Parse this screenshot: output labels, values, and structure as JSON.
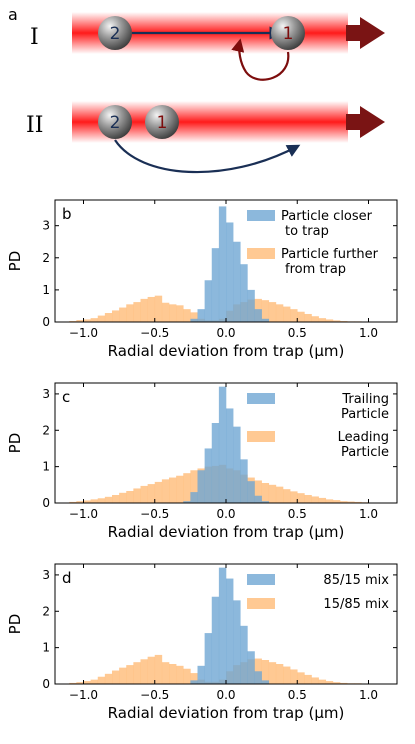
{
  "panel_a": {
    "label": "a",
    "rows": [
      {
        "roman": "I",
        "back_particle": "2",
        "front_particle": "1"
      },
      {
        "roman": "II",
        "back_particle": "2",
        "front_particle": "1"
      }
    ]
  },
  "chart_data": [
    {
      "type": "bar",
      "panel": "b",
      "xlabel": "Radial deviation from trap (μm)",
      "ylabel": "PD",
      "xlim": [
        -1.2,
        1.2
      ],
      "ylim": [
        0,
        3.8
      ],
      "xticks": [
        -1.0,
        -0.5,
        0.0,
        0.5,
        1.0
      ],
      "xtick_labels": [
        "−1.0",
        "−0.5",
        "0.0",
        "0.5",
        "1.0"
      ],
      "yticks": [
        0,
        1,
        2,
        3
      ],
      "legend_position": "top-right",
      "bin_width": 0.05,
      "bin_start": -1.1,
      "grid": false,
      "series": [
        {
          "name": "Particle further from trap",
          "legend": [
            "Particle further",
            "from trap"
          ],
          "color": "#ffbb78",
          "values": [
            0.03,
            0.06,
            0.08,
            0.12,
            0.2,
            0.28,
            0.36,
            0.45,
            0.55,
            0.62,
            0.72,
            0.78,
            0.82,
            0.6,
            0.55,
            0.52,
            0.4,
            0.3,
            0.1,
            0.05,
            0.05,
            0.1,
            0.35,
            0.55,
            0.62,
            0.7,
            0.72,
            0.68,
            0.62,
            0.55,
            0.48,
            0.4,
            0.32,
            0.25,
            0.18,
            0.12,
            0.08,
            0.05,
            0.03,
            0.02,
            0.02,
            0.01
          ]
        },
        {
          "name": "Particle closer to trap",
          "legend": [
            "Particle closer",
            "to trap"
          ],
          "color": "#6fa6d3",
          "values": [
            0,
            0,
            0,
            0,
            0,
            0,
            0,
            0,
            0,
            0,
            0,
            0,
            0,
            0,
            0,
            0,
            0,
            0.1,
            0.4,
            1.3,
            2.3,
            3.6,
            3.1,
            2.5,
            1.8,
            1.0,
            0.4,
            0.1,
            0,
            0,
            0,
            0,
            0,
            0,
            0,
            0,
            0,
            0,
            0,
            0,
            0,
            0
          ]
        }
      ]
    },
    {
      "type": "bar",
      "panel": "c",
      "xlabel": "Radial deviation from trap (μm)",
      "ylabel": "PD",
      "xlim": [
        -1.2,
        1.2
      ],
      "ylim": [
        0,
        3.3
      ],
      "xticks": [
        -1.0,
        -0.5,
        0.0,
        0.5,
        1.0
      ],
      "xtick_labels": [
        "−1.0",
        "−0.5",
        "0.0",
        "0.5",
        "1.0"
      ],
      "yticks": [
        0,
        1,
        2,
        3
      ],
      "legend_position": "top-right",
      "bin_width": 0.05,
      "bin_start": -1.1,
      "grid": false,
      "series": [
        {
          "name": "Leading Particle",
          "legend": [
            "Leading",
            "Particle"
          ],
          "color": "#ffbb78",
          "values": [
            0.03,
            0.05,
            0.07,
            0.1,
            0.13,
            0.17,
            0.22,
            0.28,
            0.33,
            0.4,
            0.47,
            0.52,
            0.58,
            0.65,
            0.7,
            0.75,
            0.82,
            0.9,
            0.95,
            1.0,
            1.02,
            1.05,
            0.95,
            0.9,
            0.78,
            0.7,
            0.62,
            0.55,
            0.5,
            0.45,
            0.38,
            0.32,
            0.27,
            0.22,
            0.18,
            0.14,
            0.1,
            0.08,
            0.05,
            0.04,
            0.03,
            0.02
          ]
        },
        {
          "name": "Trailing Particle",
          "legend": [
            "Trailing",
            "Particle"
          ],
          "color": "#6fa6d3",
          "values": [
            0,
            0,
            0,
            0,
            0,
            0,
            0,
            0,
            0,
            0,
            0,
            0,
            0,
            0,
            0,
            0,
            0.05,
            0.3,
            0.9,
            1.5,
            2.2,
            3.2,
            2.6,
            2.1,
            1.2,
            0.6,
            0.2,
            0.05,
            0,
            0,
            0,
            0,
            0,
            0,
            0,
            0,
            0,
            0,
            0,
            0,
            0,
            0
          ]
        }
      ]
    },
    {
      "type": "bar",
      "panel": "d",
      "xlabel": "Radial deviation from trap (μm)",
      "ylabel": "PD",
      "xlim": [
        -1.2,
        1.2
      ],
      "ylim": [
        0,
        3.3
      ],
      "xticks": [
        -1.0,
        -0.5,
        0.0,
        0.5,
        1.0
      ],
      "xtick_labels": [
        "−1.0",
        "−0.5",
        "0.0",
        "0.5",
        "1.0"
      ],
      "yticks": [
        0,
        1,
        2,
        3
      ],
      "legend_position": "top-right",
      "bin_width": 0.05,
      "bin_start": -1.1,
      "grid": false,
      "series": [
        {
          "name": "15/85 mix",
          "legend": [
            "15/85 mix"
          ],
          "color": "#ffbb78",
          "values": [
            0.03,
            0.05,
            0.08,
            0.12,
            0.2,
            0.28,
            0.37,
            0.45,
            0.52,
            0.6,
            0.68,
            0.75,
            0.8,
            0.6,
            0.55,
            0.5,
            0.42,
            0.3,
            0.12,
            0.06,
            0.06,
            0.12,
            0.35,
            0.52,
            0.6,
            0.68,
            0.7,
            0.66,
            0.6,
            0.55,
            0.48,
            0.4,
            0.32,
            0.25,
            0.18,
            0.12,
            0.08,
            0.05,
            0.03,
            0.02,
            0.02,
            0.01
          ]
        },
        {
          "name": "85/15 mix",
          "legend": [
            "85/15 mix"
          ],
          "color": "#6fa6d3",
          "values": [
            0,
            0,
            0,
            0,
            0,
            0,
            0,
            0,
            0,
            0,
            0,
            0,
            0,
            0,
            0,
            0,
            0,
            0.1,
            0.5,
            1.4,
            2.4,
            3.2,
            2.9,
            2.3,
            1.6,
            0.9,
            0.35,
            0.1,
            0,
            0,
            0,
            0,
            0,
            0,
            0,
            0,
            0,
            0,
            0,
            0,
            0,
            0
          ]
        }
      ]
    }
  ]
}
